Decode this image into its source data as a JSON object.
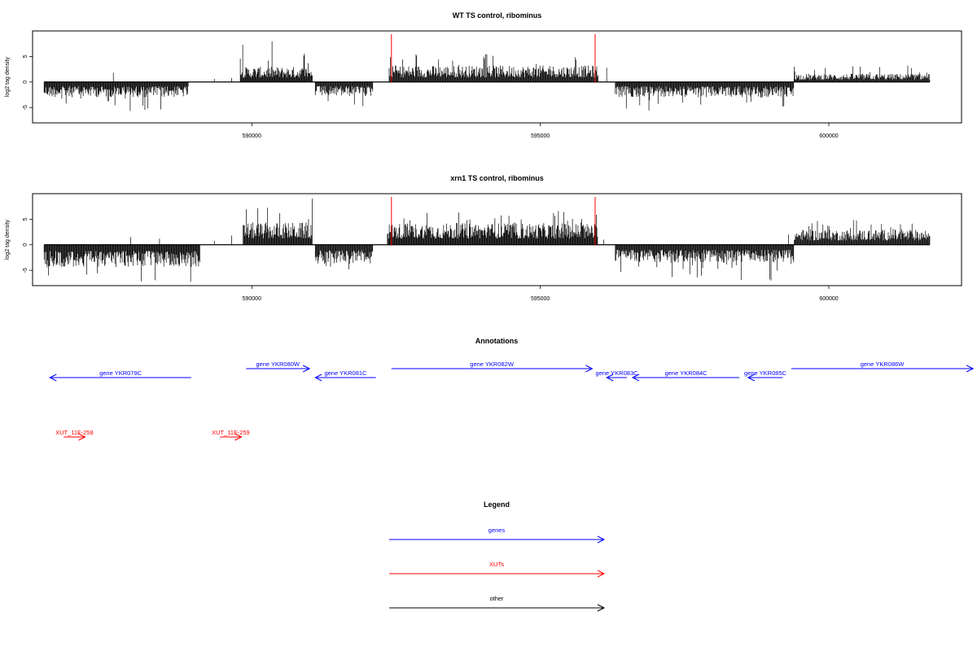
{
  "chart_data": [
    {
      "type": "bar",
      "title": "WT TS control, ribominus",
      "ylabel": "log2 tag density",
      "xlim": [
        586200,
        602300
      ],
      "ylim": [
        -8,
        10
      ],
      "yticks": [
        -5,
        0,
        5
      ],
      "xticks": [
        590000,
        595000,
        600000
      ],
      "grid": false,
      "markers": [
        592420,
        595950
      ],
      "marker_color": "#ff0000",
      "regions": [
        {
          "start": 586400,
          "end": 588900,
          "sign": -1,
          "amp": 2.4,
          "max": 5.7
        },
        {
          "start": 589800,
          "end": 591050,
          "sign": 1,
          "amp": 2.4,
          "max": 8.2
        },
        {
          "start": 591100,
          "end": 592100,
          "sign": -1,
          "amp": 2.3,
          "max": 5.0
        },
        {
          "start": 592380,
          "end": 596000,
          "sign": 1,
          "amp": 2.6,
          "max": 5.6
        },
        {
          "start": 596300,
          "end": 599400,
          "sign": -1,
          "amp": 2.4,
          "max": 5.6
        },
        {
          "start": 599400,
          "end": 601750,
          "sign": 1,
          "amp": 1.3,
          "max": 3.3
        }
      ]
    },
    {
      "type": "bar",
      "title": "xrn1 TS control, ribominus",
      "ylabel": "log2 tag density",
      "xlim": [
        586200,
        602300
      ],
      "ylim": [
        -8,
        10
      ],
      "yticks": [
        -5,
        0,
        5
      ],
      "xticks": [
        590000,
        595000,
        600000
      ],
      "grid": false,
      "markers": [
        592420,
        595950
      ],
      "marker_color": "#ff0000",
      "regions": [
        {
          "start": 586400,
          "end": 589100,
          "sign": -1,
          "amp": 3.5,
          "max": 7.5
        },
        {
          "start": 589850,
          "end": 591050,
          "sign": 1,
          "amp": 3.5,
          "max": 9.1
        },
        {
          "start": 591100,
          "end": 592100,
          "sign": -1,
          "amp": 3.0,
          "max": 5.0
        },
        {
          "start": 592350,
          "end": 596000,
          "sign": 1,
          "amp": 3.4,
          "max": 6.7
        },
        {
          "start": 596300,
          "end": 599400,
          "sign": -1,
          "amp": 2.8,
          "max": 7.0
        },
        {
          "start": 599400,
          "end": 601750,
          "sign": 1,
          "amp": 2.4,
          "max": 5.0
        }
      ]
    }
  ],
  "annotations": {
    "title": "Annotations",
    "items": [
      {
        "label": "gene YKR079C",
        "start": 586500,
        "end": 588950,
        "dir": -1,
        "row": 2,
        "color": "#0000ff"
      },
      {
        "label": "gene YKR080W",
        "start": 589900,
        "end": 591000,
        "dir": 1,
        "row": 1,
        "color": "#0000ff"
      },
      {
        "label": "gene YKR081C",
        "start": 591100,
        "end": 592150,
        "dir": -1,
        "row": 2,
        "color": "#0000ff"
      },
      {
        "label": "gene YKR082W",
        "start": 592420,
        "end": 595900,
        "dir": 1,
        "row": 1,
        "color": "#0000ff"
      },
      {
        "label": "gene YKR083C",
        "start": 596150,
        "end": 596500,
        "dir": -1,
        "row": 2,
        "color": "#0000ff"
      },
      {
        "label": "gene YKR084C",
        "start": 596600,
        "end": 598450,
        "dir": -1,
        "row": 2,
        "color": "#0000ff"
      },
      {
        "label": "gene YKR085C",
        "start": 598600,
        "end": 599200,
        "dir": -1,
        "row": 2,
        "color": "#0000ff"
      },
      {
        "label": "gene YKR086W",
        "start": 599350,
        "end": 602500,
        "dir": 1,
        "row": 1,
        "color": "#0000ff"
      },
      {
        "label": "XUT_11F-258",
        "start": 586740,
        "end": 587110,
        "dir": 1,
        "row": 3,
        "color": "#ff0000"
      },
      {
        "label": "XUT_11F-259",
        "start": 589450,
        "end": 589820,
        "dir": 1,
        "row": 3,
        "color": "#ff0000"
      }
    ]
  },
  "legend": {
    "title": "Legend",
    "items": [
      {
        "label": "genes",
        "color": "#0000ff"
      },
      {
        "label": "XUTs",
        "color": "#ff0000"
      },
      {
        "label": "other",
        "color": "#000000"
      }
    ]
  }
}
